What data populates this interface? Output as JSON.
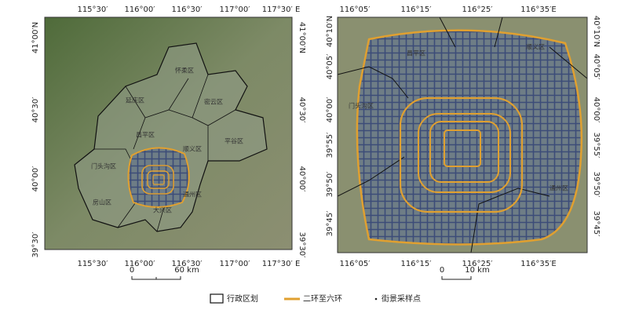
{
  "left_map": {
    "top_ticks": [
      "115°30′",
      "116°00′",
      "116°30′",
      "117°00′",
      "117°30′ E"
    ],
    "bottom_ticks": [
      "115°30′",
      "116°00′",
      "116°30′",
      "117°00′",
      "117°30′ E"
    ],
    "left_ticks": [
      "41°00′N",
      "40°30′",
      "40°00′",
      "39°30′"
    ],
    "right_ticks": [
      "41°00′N",
      "40°30′",
      "40°00′",
      "39°30′"
    ],
    "districts": [
      "怀柔区",
      "延庆区",
      "密云区",
      "昌平区",
      "顺义区",
      "平谷区",
      "门头沟区",
      "通州区",
      "房山区",
      "大兴区"
    ],
    "scale_bar": {
      "start": "0",
      "end": "60 km"
    }
  },
  "right_map": {
    "top_ticks": [
      "116°05′",
      "116°15′",
      "116°25′",
      "116°35′E"
    ],
    "bottom_ticks": [
      "116°05′",
      "116°15′",
      "116°25′",
      "116°35′E"
    ],
    "left_ticks": [
      "40°10′N",
      "40°05′",
      "40°00′",
      "39°55′",
      "39°50′",
      "39°45′"
    ],
    "right_ticks": [
      "40°10′N",
      "40°05′",
      "40°00′",
      "39°55′",
      "39°50′",
      "39°45′"
    ],
    "districts": [
      "昌平区",
      "顺义区",
      "门头沟区",
      "通州区"
    ],
    "scale_bar": {
      "start": "0",
      "end": "10 km"
    }
  },
  "legend": {
    "boundary": "行政区划",
    "ring_roads": "二环至六环",
    "sample_points": "街景采样点"
  }
}
